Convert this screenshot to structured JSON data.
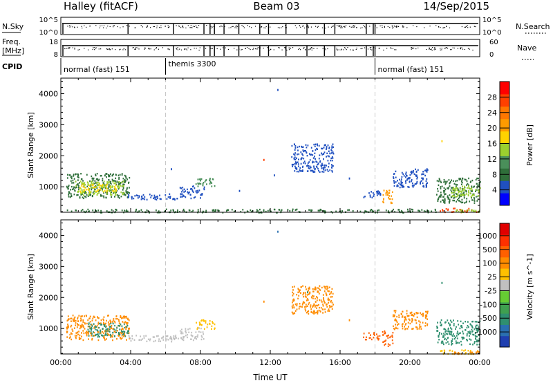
{
  "header": {
    "title_left": "Halley (fitACF)",
    "title_center": "Beam 03",
    "title_right": "14/Sep/2015"
  },
  "strip_labels": {
    "nsky": "N.Sky",
    "nsky_ticks": [
      "10^5",
      "10^0"
    ],
    "nsearch": "N.Search",
    "nsearch_ticks": [
      "10^5",
      "10^0"
    ],
    "freq": "Freq.",
    "freq_unit": "[MHz]",
    "freq_ticks": [
      "18",
      "8"
    ],
    "nave": "Nave",
    "nave_ticks": [
      "60",
      "0"
    ],
    "cpid": "CPID"
  },
  "cpid_segments": [
    {
      "label": "normal (fast) 151",
      "start_hour": 0
    },
    {
      "label": "themis 3300",
      "start_hour": 6
    },
    {
      "label": "normal (fast) 151",
      "start_hour": 18
    }
  ],
  "chart_data": [
    {
      "type": "scatter",
      "panel": "power",
      "xlabel": "Time UT",
      "ylabel": "Slant Range [km]",
      "xlim": [
        0,
        24
      ],
      "ylim": [
        180,
        4500
      ],
      "x_ticks": [
        "00:00",
        "04:00",
        "08:00",
        "12:00",
        "16:00",
        "20:00",
        "00:00"
      ],
      "y_ticks": [
        "1000",
        "2000",
        "3000",
        "4000"
      ],
      "colorbar": {
        "label": "Power [dB]",
        "ticks": [
          "4",
          "8",
          "12",
          "16",
          "20",
          "24",
          "28"
        ],
        "colors": [
          "#0000ff",
          "#2050c0",
          "#2f6f3a",
          "#4a8f5a",
          "#9bcf2f",
          "#ffd200",
          "#ff9a00",
          "#ff7700",
          "#ff4000",
          "#ff0000"
        ]
      },
      "guides_hours": [
        6,
        18
      ],
      "echo_regions": [
        {
          "t0": 0.3,
          "t1": 3.9,
          "r0": 650,
          "r1": 1450,
          "color": "#2f6f3a"
        },
        {
          "t0": 0.8,
          "t1": 3.6,
          "r0": 750,
          "r1": 1200,
          "color": "#9bcf2f"
        },
        {
          "t0": 1.0,
          "t1": 3.2,
          "r0": 850,
          "r1": 1100,
          "color": "#ffd200"
        },
        {
          "t0": 3.8,
          "t1": 6.7,
          "r0": 600,
          "r1": 800,
          "color": "#2050c0"
        },
        {
          "t0": 6.8,
          "t1": 8.2,
          "r0": 650,
          "r1": 1050,
          "color": "#2050c0"
        },
        {
          "t0": 7.7,
          "t1": 8.8,
          "r0": 1000,
          "r1": 1300,
          "color": "#4a8f5a"
        },
        {
          "t0": 13.2,
          "t1": 15.6,
          "r0": 1500,
          "r1": 2400,
          "color": "#2050c0"
        },
        {
          "t0": 17.3,
          "t1": 18.3,
          "r0": 650,
          "r1": 900,
          "color": "#2050c0"
        },
        {
          "t0": 18.4,
          "t1": 19.0,
          "r0": 450,
          "r1": 950,
          "color": "#ff9a00"
        },
        {
          "t0": 19.0,
          "t1": 21.0,
          "r0": 1000,
          "r1": 1600,
          "color": "#2050c0"
        },
        {
          "t0": 21.5,
          "t1": 24.0,
          "r0": 500,
          "r1": 1300,
          "color": "#2f6f3a"
        },
        {
          "t0": 22.3,
          "t1": 24.0,
          "r0": 700,
          "r1": 1050,
          "color": "#9bcf2f"
        },
        {
          "t0": 21.7,
          "t1": 24.0,
          "r0": 200,
          "r1": 330,
          "color": "#ff4000"
        },
        {
          "t0": 22.5,
          "t1": 24.0,
          "r0": 200,
          "r1": 280,
          "color": "#9bcf2f"
        },
        {
          "t0": 0.3,
          "t1": 21.5,
          "r0": 190,
          "r1": 300,
          "color": "#2f6f3a"
        }
      ],
      "isolated_points": [
        {
          "t": 12.4,
          "r": 4150,
          "color": "#2050c0"
        },
        {
          "t": 10.2,
          "r": 900,
          "color": "#2050c0"
        },
        {
          "t": 11.6,
          "r": 1900,
          "color": "#ff4000"
        },
        {
          "t": 12.2,
          "r": 1400,
          "color": "#2050c0"
        },
        {
          "t": 16.5,
          "r": 1300,
          "color": "#2050c0"
        },
        {
          "t": 20.3,
          "r": 1400,
          "color": "#2050c0"
        },
        {
          "t": 21.8,
          "r": 2500,
          "color": "#ffd200"
        },
        {
          "t": 6.3,
          "r": 1600,
          "color": "#2050c0"
        }
      ]
    },
    {
      "type": "scatter",
      "panel": "velocity",
      "xlabel": "Time UT",
      "ylabel": "Slant Range [km]",
      "xlim": [
        0,
        24
      ],
      "ylim": [
        180,
        4500
      ],
      "x_ticks": [
        "00:00",
        "04:00",
        "08:00",
        "12:00",
        "16:00",
        "20:00",
        "00:00"
      ],
      "y_ticks": [
        "1000",
        "2000",
        "3000",
        "4000"
      ],
      "colorbar": {
        "label": "Velocity [m s^-1]",
        "ticks": [
          "1000",
          "500",
          "100",
          "25",
          "-25",
          "-100",
          "-500",
          "-1000"
        ],
        "colors": [
          "#1f3fb0",
          "#2a6fb0",
          "#2f8f6f",
          "#3fa050",
          "#66cc33",
          "#c0c0c0",
          "#ffc000",
          "#ff8c00",
          "#ff6000",
          "#ff3000",
          "#e00000"
        ]
      },
      "guides_hours": [
        6,
        18
      ],
      "echo_regions": [
        {
          "t0": 0.3,
          "t1": 3.9,
          "r0": 650,
          "r1": 1450,
          "color": "#ff8c00"
        },
        {
          "t0": 1.5,
          "t1": 3.9,
          "r0": 750,
          "r1": 1200,
          "color": "#2f8f6f"
        },
        {
          "t0": 3.8,
          "t1": 6.7,
          "r0": 600,
          "r1": 800,
          "color": "#c0c0c0"
        },
        {
          "t0": 6.8,
          "t1": 8.2,
          "r0": 650,
          "r1": 1050,
          "color": "#c0c0c0"
        },
        {
          "t0": 7.7,
          "t1": 8.8,
          "r0": 1000,
          "r1": 1300,
          "color": "#ffc000"
        },
        {
          "t0": 13.2,
          "t1": 15.6,
          "r0": 1500,
          "r1": 2400,
          "color": "#ff8c00"
        },
        {
          "t0": 17.3,
          "t1": 18.3,
          "r0": 650,
          "r1": 900,
          "color": "#ff6000"
        },
        {
          "t0": 18.4,
          "t1": 19.0,
          "r0": 450,
          "r1": 950,
          "color": "#ff6000"
        },
        {
          "t0": 19.0,
          "t1": 21.0,
          "r0": 1000,
          "r1": 1600,
          "color": "#ff8c00"
        },
        {
          "t0": 21.5,
          "t1": 24.0,
          "r0": 500,
          "r1": 1300,
          "color": "#2f8f6f"
        },
        {
          "t0": 21.7,
          "t1": 24.0,
          "r0": 200,
          "r1": 330,
          "color": "#ffc000"
        },
        {
          "t0": 22.5,
          "t1": 24.0,
          "r0": 200,
          "r1": 280,
          "color": "#ff8c00"
        }
      ],
      "isolated_points": [
        {
          "t": 12.4,
          "r": 4150,
          "color": "#2a6fb0"
        },
        {
          "t": 11.6,
          "r": 1900,
          "color": "#ff8c00"
        },
        {
          "t": 14.1,
          "r": 2200,
          "color": "#2f8f6f"
        },
        {
          "t": 16.5,
          "r": 1300,
          "color": "#ff8c00"
        },
        {
          "t": 21.8,
          "r": 2500,
          "color": "#2f8f6f"
        }
      ]
    }
  ],
  "strip_data": {
    "gap_hours": [
      3.85,
      6.45,
      8.2,
      8.55,
      8.8,
      9.35,
      10.2,
      11.4,
      11.9,
      12.9,
      14.1,
      15.1,
      15.7,
      17.5,
      17.9,
      18.0
    ]
  },
  "colors": {
    "axis": "#000000",
    "guide": "#c8c8c8"
  }
}
